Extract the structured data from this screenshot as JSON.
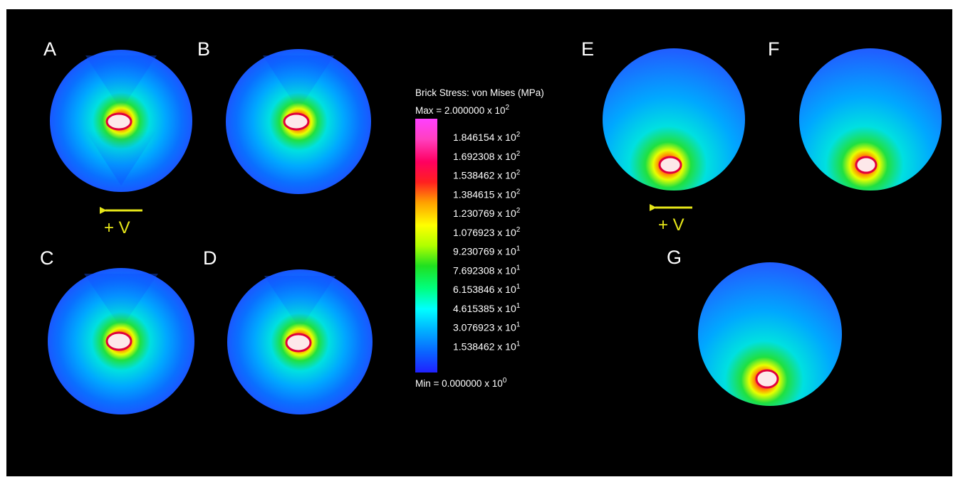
{
  "panels": [
    {
      "id": "A",
      "label": "A"
    },
    {
      "id": "B",
      "label": "B"
    },
    {
      "id": "C",
      "label": "C"
    },
    {
      "id": "D",
      "label": "D"
    },
    {
      "id": "E",
      "label": "E"
    },
    {
      "id": "F",
      "label": "F"
    },
    {
      "id": "G",
      "label": "G"
    }
  ],
  "velocity_labels": [
    {
      "id": "left",
      "text": "+ V"
    },
    {
      "id": "right",
      "text": "+ V"
    }
  ],
  "legend": {
    "title": "Brick Stress: von Mises (MPa)",
    "max_text": "Max = 2.000000 x 10",
    "max_exp": "2",
    "min_text": "Min = 0.000000 x 10",
    "min_exp": "0",
    "ticks": [
      {
        "mantissa": "1.846154 x 10",
        "exp": "2"
      },
      {
        "mantissa": "1.692308 x 10",
        "exp": "2"
      },
      {
        "mantissa": "1.538462 x 10",
        "exp": "2"
      },
      {
        "mantissa": "1.384615 x 10",
        "exp": "2"
      },
      {
        "mantissa": "1.230769 x 10",
        "exp": "2"
      },
      {
        "mantissa": "1.076923 x 10",
        "exp": "2"
      },
      {
        "mantissa": "9.230769 x 10",
        "exp": "1"
      },
      {
        "mantissa": "7.692308 x 10",
        "exp": "1"
      },
      {
        "mantissa": "6.153846 x 10",
        "exp": "1"
      },
      {
        "mantissa": "4.615385 x 10",
        "exp": "1"
      },
      {
        "mantissa": "3.076923 x 10",
        "exp": "1"
      },
      {
        "mantissa": "1.538462 x 10",
        "exp": "1"
      }
    ],
    "colors": [
      "#2020ff",
      "#0a64ff",
      "#00b4ff",
      "#00ffff",
      "#00ff80",
      "#20e020",
      "#b0ff00",
      "#ffff00",
      "#ffa000",
      "#ff2020",
      "#ff0060",
      "#ff40c0",
      "#ff40ff"
    ]
  }
}
